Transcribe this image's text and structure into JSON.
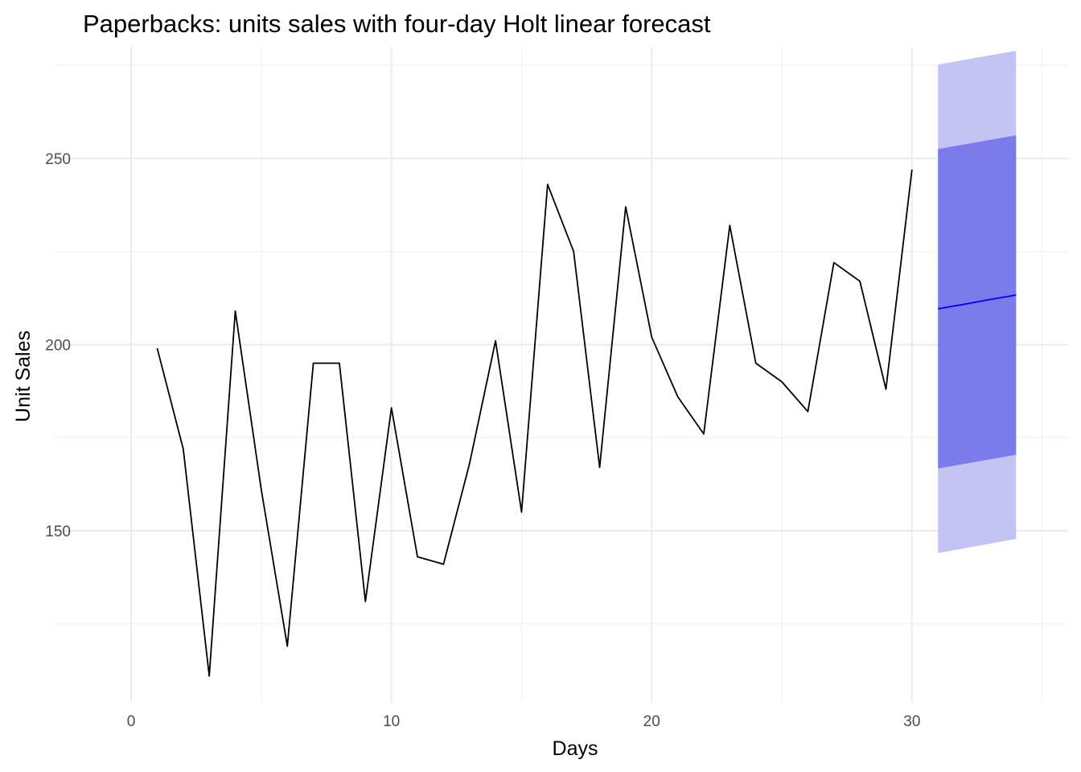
{
  "chart_data": {
    "type": "line",
    "title": "Paperbacks: units sales with four-day Holt linear forecast",
    "xlabel": "Days",
    "ylabel": "Unit Sales",
    "xlim": [
      -3,
      36
    ],
    "ylim": [
      104,
      280
    ],
    "x_ticks": [
      0,
      10,
      20,
      30
    ],
    "y_ticks": [
      150,
      200,
      250
    ],
    "x_minor": [
      5,
      15,
      25,
      35
    ],
    "y_minor": [
      125,
      175,
      225,
      275
    ],
    "grid": true,
    "legend": "none",
    "series": [
      {
        "x": [
          1,
          2,
          3,
          4,
          5,
          6,
          7,
          8,
          9,
          10,
          11,
          12,
          13,
          14,
          15,
          16,
          17,
          18,
          19,
          20,
          21,
          22,
          23,
          24,
          25,
          26,
          27,
          28,
          29,
          30
        ],
        "values": [
          199,
          172,
          111,
          209,
          161,
          119,
          195,
          195,
          131,
          183,
          143,
          141,
          168,
          201,
          155,
          243,
          225,
          167,
          237,
          202,
          186,
          176,
          232,
          195,
          190,
          182,
          222,
          217,
          188,
          247
        ],
        "color": "#000000"
      }
    ],
    "forecast": {
      "x": [
        31,
        32,
        33,
        34
      ],
      "mean": [
        209.6,
        210.8,
        212.1,
        213.3
      ],
      "lo80": [
        166.7,
        167.9,
        169.2,
        170.4
      ],
      "hi80": [
        252.5,
        253.7,
        255.0,
        256.2
      ],
      "lo95": [
        144.0,
        145.2,
        146.5,
        147.8
      ],
      "hi95": [
        275.2,
        276.4,
        277.7,
        278.9
      ],
      "mean_color": "#0000ff",
      "band80_color": "#7b7bec",
      "band95_color": "#c3c3f4"
    }
  }
}
